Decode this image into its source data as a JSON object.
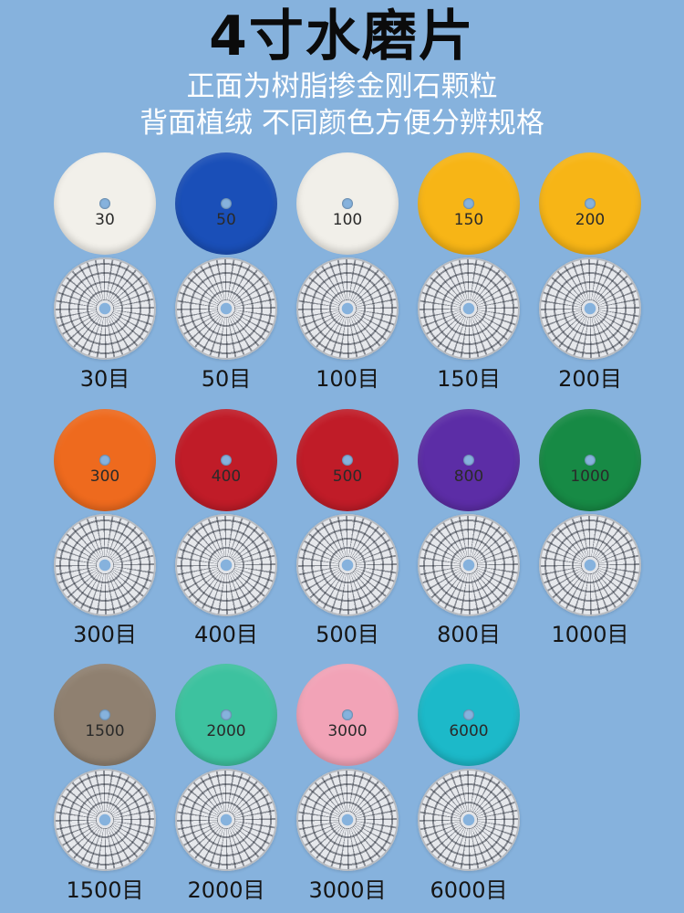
{
  "header": {
    "title": "4寸水磨片",
    "subtitle_line1": "正面为树脂掺金刚石颗粒",
    "subtitle_line2": "背面植绒 不同颜色方便分辨规格"
  },
  "colors": {
    "background": "#86B2DD",
    "title_text": "#0b0b0b",
    "subtitle_text": "#ffffff"
  },
  "pads": [
    {
      "felt_number": "30",
      "grit_label": "30目",
      "color": "#F2F0EA"
    },
    {
      "felt_number": "50",
      "grit_label": "50目",
      "color": "#1A4FB8"
    },
    {
      "felt_number": "100",
      "grit_label": "100目",
      "color": "#F1EFE9"
    },
    {
      "felt_number": "150",
      "grit_label": "150目",
      "color": "#F7B516"
    },
    {
      "felt_number": "200",
      "grit_label": "200目",
      "color": "#F7B516"
    },
    {
      "felt_number": "300",
      "grit_label": "300目",
      "color": "#EE6A1E"
    },
    {
      "felt_number": "400",
      "grit_label": "400目",
      "color": "#C01C28"
    },
    {
      "felt_number": "500",
      "grit_label": "500目",
      "color": "#C01C28"
    },
    {
      "felt_number": "800",
      "grit_label": "800目",
      "color": "#5C2DA6"
    },
    {
      "felt_number": "1000",
      "grit_label": "1000目",
      "color": "#178A45"
    },
    {
      "felt_number": "1500",
      "grit_label": "1500目",
      "color": "#8F8070"
    },
    {
      "felt_number": "2000",
      "grit_label": "2000目",
      "color": "#3DC29F"
    },
    {
      "felt_number": "3000",
      "grit_label": "3000目",
      "color": "#F2A3B7"
    },
    {
      "felt_number": "6000",
      "grit_label": "6000目",
      "color": "#1CB9C9"
    }
  ]
}
